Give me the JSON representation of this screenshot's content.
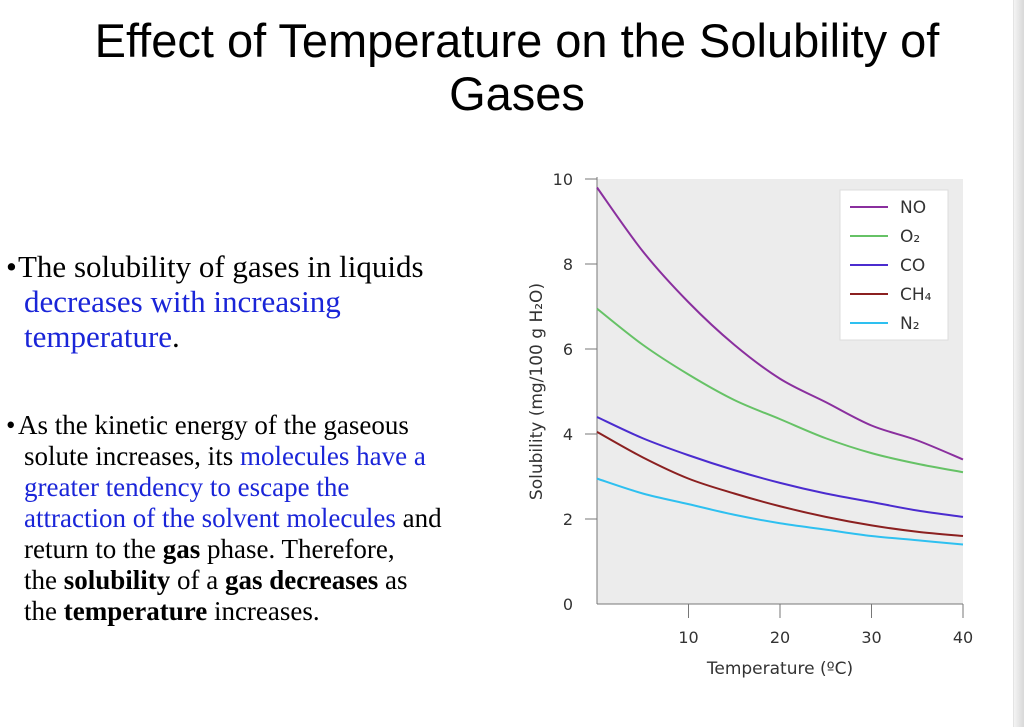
{
  "slide": {
    "title_line1": "Effect of Temperature on the Solubility of",
    "title_line2": "Gases"
  },
  "bullet1": {
    "marker": "•",
    "l1": "The solubility of gases in liquids",
    "l2": "decreases with increasing",
    "l3a": "temperature",
    "l3b": "."
  },
  "bullet2": {
    "marker": "•",
    "l1": "As the kinetic energy of the gaseous",
    "l2a": "solute increases, its ",
    "l2b": "molecules have a",
    "l3": "greater tendency to escape the",
    "l4a": "attraction of the solvent molecules",
    "l4b": " and",
    "l5a": "return to the ",
    "l5b": "gas",
    "l5c": " phase. Therefore,",
    "l6a": "the ",
    "l6b": "solubility",
    "l6c": " of a ",
    "l6d": "gas decreases",
    "l6e": " as",
    "l7a": "the ",
    "l7b": "temperature",
    "l7c": " increases."
  },
  "colors": {
    "blue_text": "#1a25d8",
    "plot_bg": "#ececec"
  },
  "chart_data": {
    "type": "line",
    "xlabel": "Temperature (ºC)",
    "ylabel": "Solubility (mg/100 g H₂O)",
    "xlim": [
      0,
      40
    ],
    "ylim": [
      0,
      10
    ],
    "x_ticks": [
      10,
      20,
      30,
      40
    ],
    "y_ticks": [
      0,
      2,
      4,
      6,
      8,
      10
    ],
    "legend_position": "top-right",
    "x": [
      0,
      5,
      10,
      15,
      20,
      25,
      30,
      35,
      40
    ],
    "series": [
      {
        "name": "NO",
        "color": "#8a2f9e",
        "values": [
          9.8,
          8.3,
          7.1,
          6.1,
          5.3,
          4.75,
          4.2,
          3.85,
          3.4
        ]
      },
      {
        "name": "O₂",
        "color": "#66c266",
        "values": [
          6.95,
          6.1,
          5.4,
          4.8,
          4.35,
          3.9,
          3.55,
          3.3,
          3.1
        ]
      },
      {
        "name": "CO",
        "color": "#4b2ccf",
        "values": [
          4.4,
          3.9,
          3.5,
          3.15,
          2.85,
          2.6,
          2.4,
          2.2,
          2.05
        ]
      },
      {
        "name": "CH₄",
        "color": "#8b2020",
        "values": [
          4.05,
          3.45,
          2.95,
          2.6,
          2.3,
          2.05,
          1.85,
          1.7,
          1.6
        ]
      },
      {
        "name": "N₂",
        "color": "#2ec0f0",
        "values": [
          2.95,
          2.6,
          2.35,
          2.1,
          1.9,
          1.75,
          1.6,
          1.5,
          1.4
        ]
      }
    ]
  }
}
